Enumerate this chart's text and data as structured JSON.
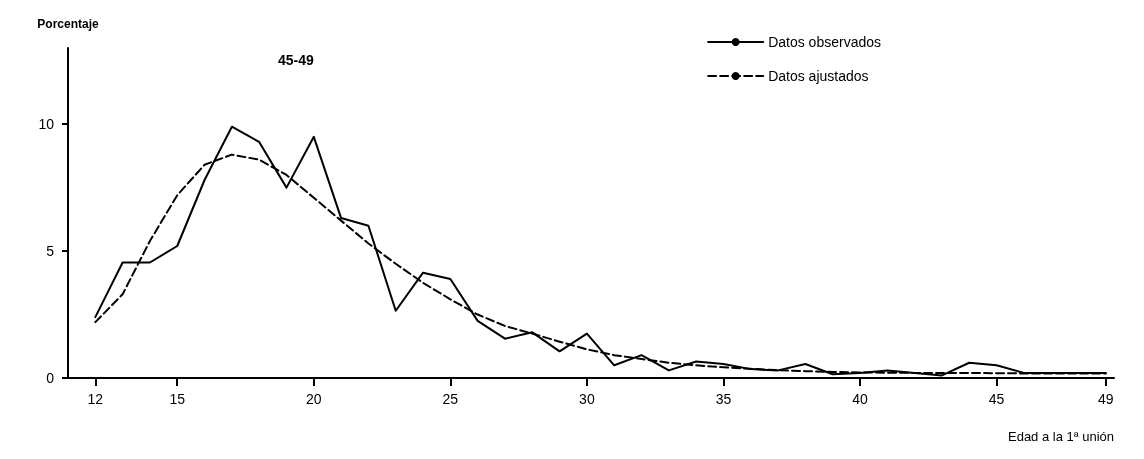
{
  "chart_data": {
    "type": "line",
    "title": "45-49",
    "ylabel": "Porcentaje",
    "xlabel": "Edad a la 1ª unión",
    "x": [
      12,
      13,
      14,
      15,
      16,
      17,
      18,
      19,
      20,
      21,
      22,
      23,
      24,
      25,
      26,
      27,
      28,
      29,
      30,
      31,
      32,
      33,
      34,
      35,
      36,
      37,
      38,
      39,
      40,
      41,
      42,
      43,
      44,
      45,
      46,
      47,
      48,
      49
    ],
    "series": [
      {
        "name": "Datos observados",
        "color": "#000000",
        "line_style": "solid",
        "values": [
          2.4,
          4.55,
          4.55,
          5.2,
          7.8,
          9.9,
          9.3,
          7.5,
          9.5,
          6.3,
          6.0,
          2.65,
          4.15,
          3.9,
          2.25,
          1.55,
          1.8,
          1.05,
          1.75,
          0.5,
          0.9,
          0.3,
          0.65,
          0.55,
          0.35,
          0.3,
          0.55,
          0.15,
          0.2,
          0.3,
          0.2,
          0.1,
          0.6,
          0.5,
          0.2,
          0.2,
          0.2,
          0.2
        ]
      },
      {
        "name": "Datos ajustados",
        "color": "#000000",
        "line_style": "dashed",
        "values": [
          2.2,
          3.3,
          5.4,
          7.2,
          8.4,
          8.8,
          8.6,
          8.0,
          7.1,
          6.2,
          5.3,
          4.5,
          3.75,
          3.1,
          2.5,
          2.05,
          1.75,
          1.43,
          1.13,
          0.9,
          0.75,
          0.6,
          0.5,
          0.42,
          0.36,
          0.31,
          0.27,
          0.24,
          0.22,
          0.21,
          0.2,
          0.2,
          0.2,
          0.19,
          0.18,
          0.18,
          0.18,
          0.18
        ]
      }
    ],
    "xlim": [
      11,
      49.3
    ],
    "xticks": [
      12,
      15,
      20,
      25,
      30,
      35,
      40,
      45,
      49
    ],
    "ylim": [
      0,
      13
    ],
    "yticks": [
      0,
      5,
      10
    ],
    "grid": false,
    "legend": "top right",
    "marker": "none"
  }
}
